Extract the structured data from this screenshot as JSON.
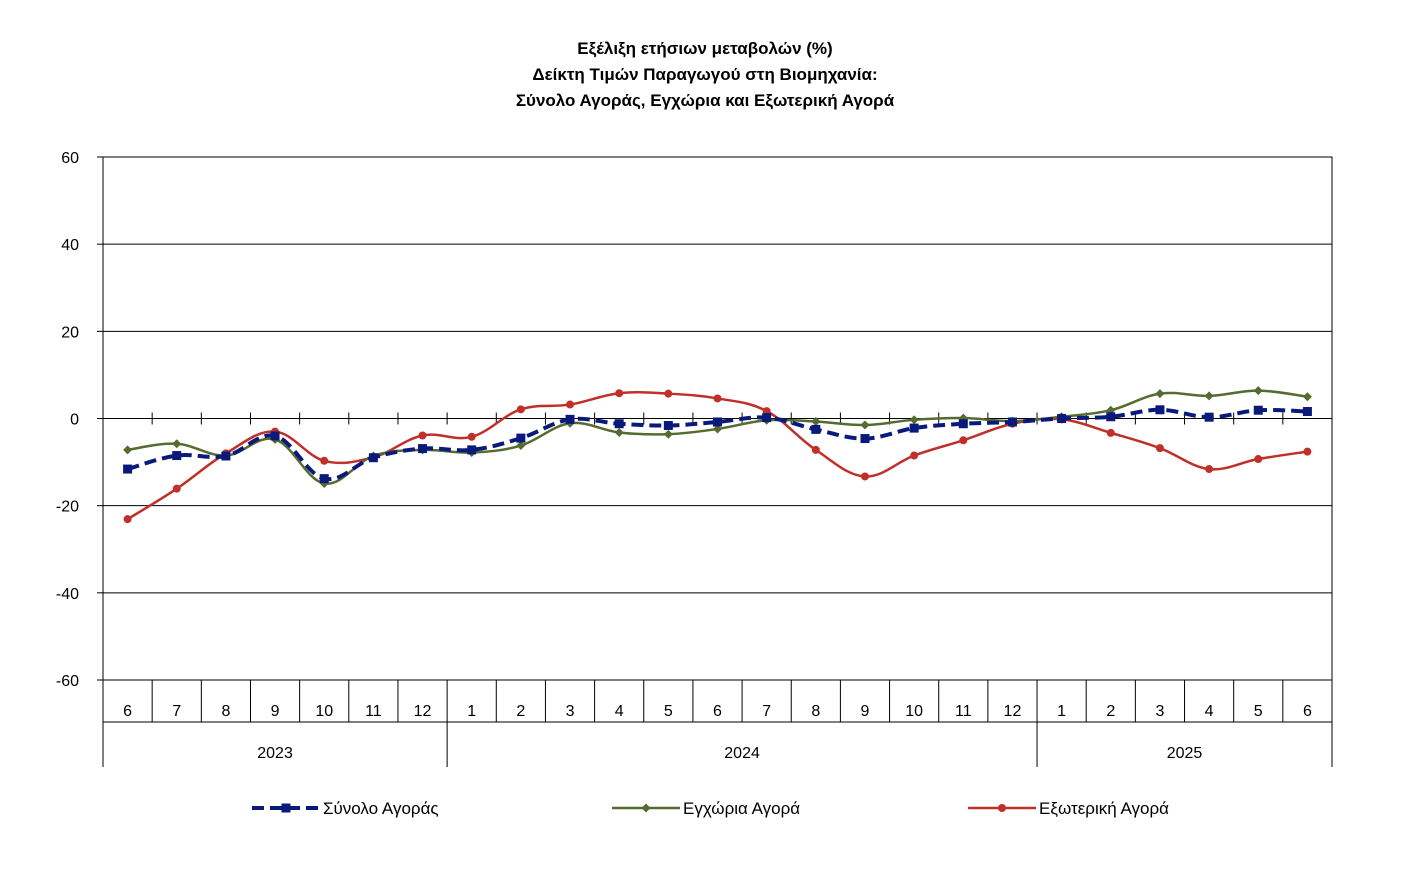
{
  "chart_data": {
    "type": "line",
    "title": "Εξέλιξη ετήσιων μεταβολών (%)",
    "subtitle_lines": [
      "Δείκτη Τιμών Παραγωγού στη Βιομηχανία:",
      "Σύνολο Αγοράς, Εγχώρια και Εξωτερική Αγορά"
    ],
    "xlabel": "",
    "ylabel": "",
    "ylim": [
      -60,
      60
    ],
    "yticks": [
      60,
      40,
      20,
      0,
      -20,
      -40,
      -60
    ],
    "grid": true,
    "legend_position": "bottom",
    "categories": [
      "6",
      "7",
      "8",
      "9",
      "10",
      "11",
      "12",
      "1",
      "2",
      "3",
      "4",
      "5",
      "6",
      "7",
      "8",
      "9",
      "10",
      "11",
      "12",
      "1",
      "2",
      "3",
      "4",
      "5",
      "6"
    ],
    "year_groups": [
      {
        "label": "2023",
        "start": 0,
        "count": 7
      },
      {
        "label": "2024",
        "start": 7,
        "count": 12
      },
      {
        "label": "2025",
        "start": 19,
        "count": 6
      }
    ],
    "series": [
      {
        "name": "Σύνολο Αγοράς",
        "color": "#0a1a7a",
        "style": "dashed",
        "marker": "square",
        "values": [
          -11.6,
          -8.5,
          -8.6,
          -4.0,
          -13.8,
          -9.0,
          -6.9,
          -7.2,
          -4.5,
          -0.2,
          -1.2,
          -1.6,
          -0.8,
          0.2,
          -2.5,
          -4.6,
          -2.2,
          -1.2,
          -0.8,
          0.0,
          0.4,
          2.0,
          0.3,
          1.9,
          1.6
        ]
      },
      {
        "name": "Εγχώρια Αγορά",
        "color": "#556b2f",
        "style": "solid",
        "marker": "diamond",
        "values": [
          -7.2,
          -5.8,
          -8.5,
          -4.8,
          -14.9,
          -8.6,
          -7.2,
          -7.8,
          -6.2,
          -1.1,
          -3.2,
          -3.6,
          -2.4,
          -0.4,
          -0.7,
          -1.5,
          -0.3,
          0.1,
          -0.6,
          0.4,
          1.9,
          5.7,
          5.2,
          6.4,
          5.0
        ]
      },
      {
        "name": "Εξωτερική Αγορά",
        "color": "#c0302a",
        "style": "solid",
        "marker": "circle",
        "values": [
          -23.1,
          -16.1,
          -8.0,
          -3.0,
          -9.7,
          -8.9,
          -3.9,
          -4.2,
          2.1,
          3.2,
          5.8,
          5.7,
          4.6,
          1.7,
          -7.2,
          -13.3,
          -8.5,
          -5.0,
          -1.2,
          -0.2,
          -3.3,
          -6.8,
          -11.6,
          -9.3,
          -7.6
        ]
      }
    ]
  }
}
